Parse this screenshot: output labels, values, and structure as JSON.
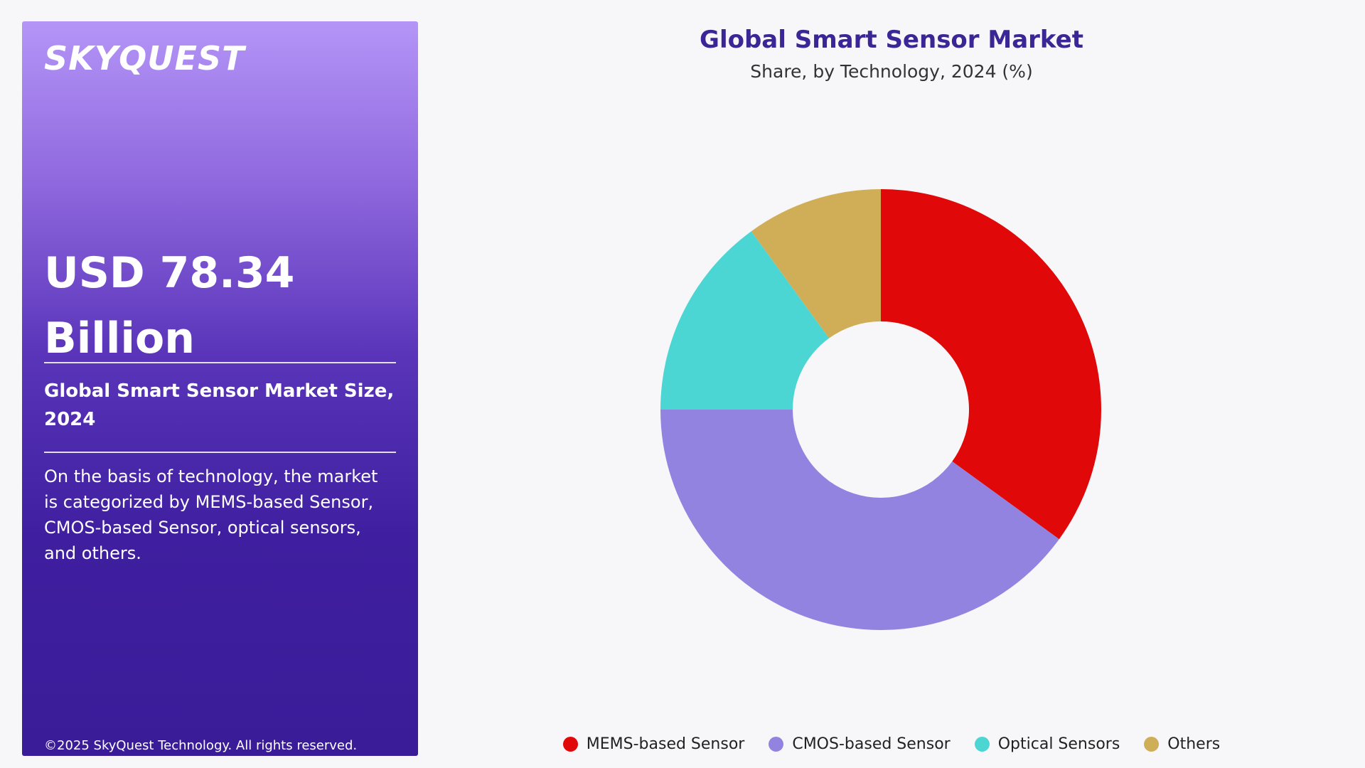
{
  "sidebar": {
    "logo": "SKYQUEST",
    "value_line1": "USD 78.34",
    "value_line2": "Billion",
    "size_label": "Global Smart Sensor Market Size, 2024",
    "description": "On the basis of technology, the market is categorized by MEMS-based Sensor, CMOS-based Sensor, optical sensors, and others.",
    "copyright": "©2025 SkyQuest Technology. All rights reserved."
  },
  "chart_data": {
    "type": "pie",
    "variant": "donut",
    "title": "Global Smart Sensor Market",
    "subtitle": "Share, by Technology, 2024 (%)",
    "categories": [
      "MEMS-based Sensor",
      "CMOS-based Sensor",
      "Optical Sensors",
      "Others"
    ],
    "values": [
      35,
      40,
      15,
      10
    ],
    "colors": [
      "#e00808",
      "#9283e0",
      "#4bd6d4",
      "#d0ae57"
    ],
    "legend": "bottom"
  }
}
